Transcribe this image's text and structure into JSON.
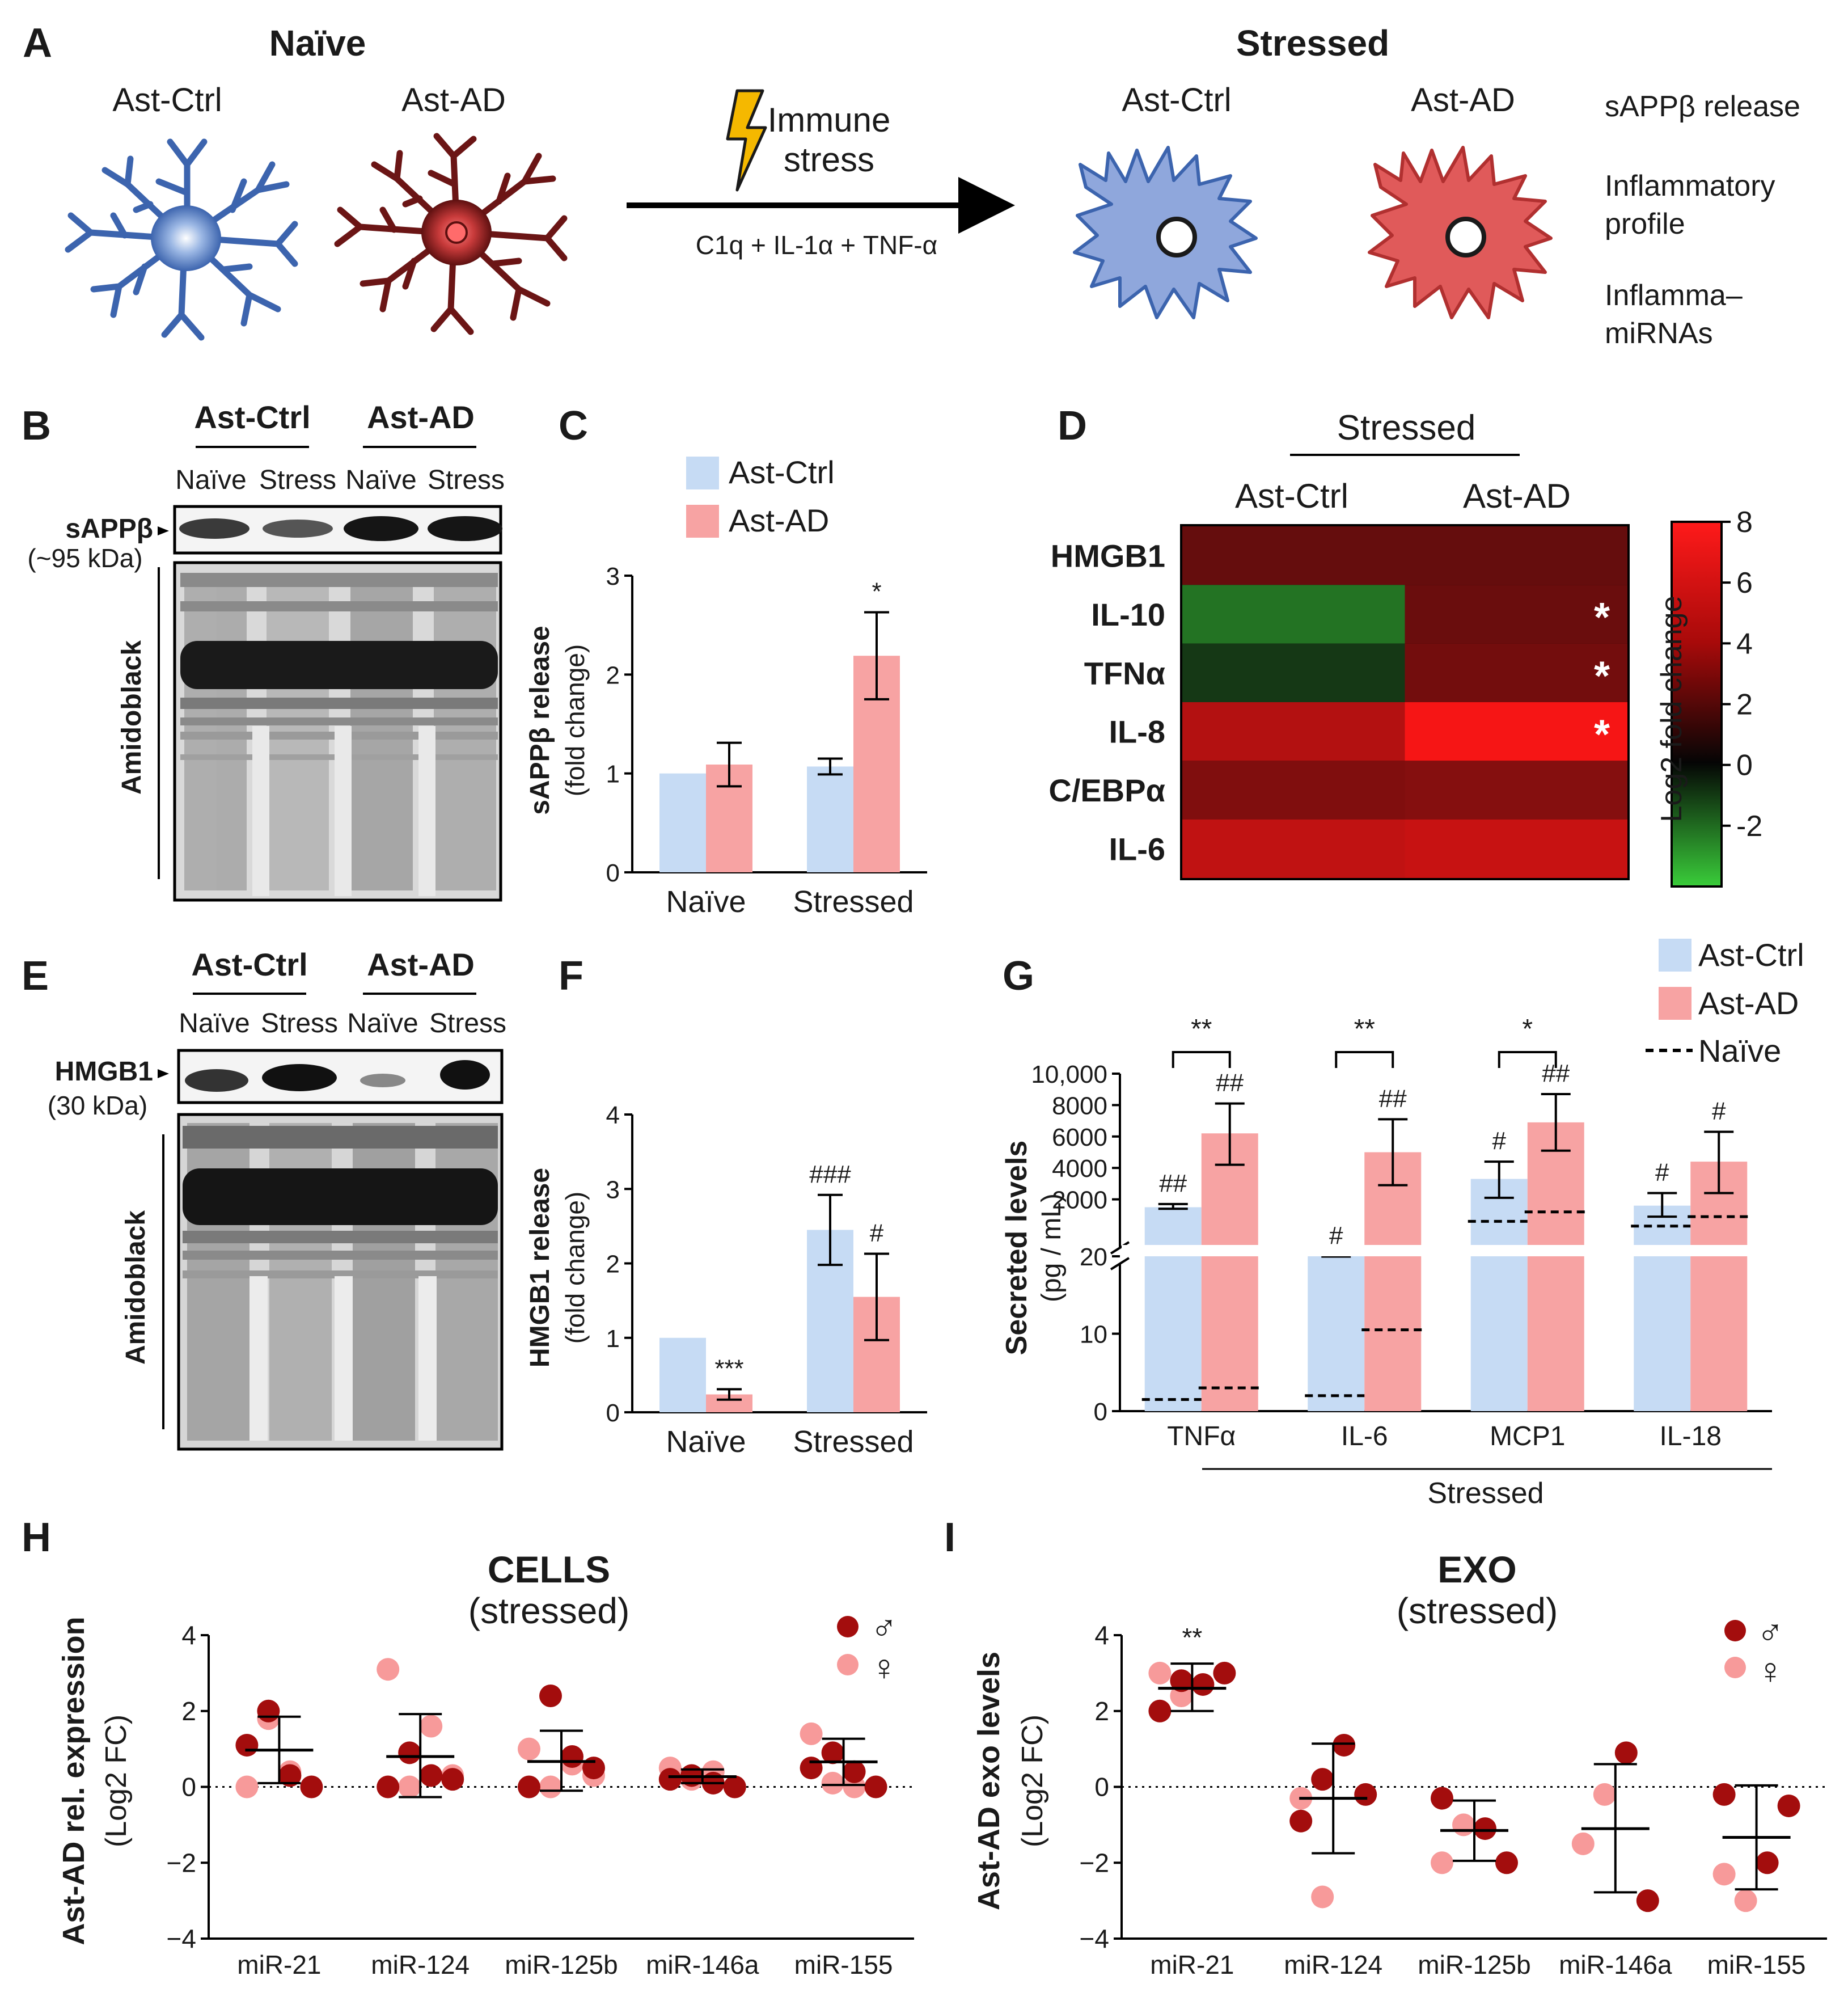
{
  "colors": {
    "ctrl": "#c6dbf4",
    "ad": "#f7a3a3",
    "male": "#a30d0d",
    "female": "#f79a9a",
    "ctrl_cell": "#3c64ae",
    "ad_cell": "#7a1818",
    "bolt": "#f5b800"
  },
  "panelA": {
    "letter": "A",
    "naive_title": "Naïve",
    "stressed_title": "Stressed",
    "ast_ctrl": "Ast-Ctrl",
    "ast_ad": "Ast-AD",
    "immune_line1": "Immune",
    "immune_line2": "stress",
    "treatment": "C1q  +  IL-1α  + TNF-α",
    "outcomes": [
      "sAPPβ release",
      "Inflammatory",
      "profile",
      "Inflamma–",
      "miRNAs"
    ]
  },
  "panelB": {
    "letter": "B",
    "groups": [
      "Ast-Ctrl",
      "Ast-AD"
    ],
    "lanes": [
      "Naïve",
      "Stress",
      "Naïve",
      "Stress"
    ],
    "band_label": "sAPPβ",
    "band_size": "(~95 kDa)",
    "stain": "Amidoblack"
  },
  "panelC": {
    "letter": "C",
    "chart_data": {
      "type": "bar",
      "categories": [
        "Naïve",
        "Stressed"
      ],
      "series": [
        {
          "name": "Ast-Ctrl",
          "values": [
            1.0,
            1.07
          ],
          "errors": [
            0,
            0.08
          ]
        },
        {
          "name": "Ast-AD",
          "values": [
            1.09,
            2.19
          ],
          "errors": [
            0.22,
            0.44
          ]
        }
      ],
      "annotations": [
        {
          "category": "Stressed",
          "series": "Ast-AD",
          "text": "*"
        }
      ],
      "ylabel_line1": "sAPPβ release",
      "ylabel_line2": "(fold change)",
      "ylim": [
        0,
        3
      ],
      "yticks": [
        "0",
        "1",
        "2",
        "3"
      ]
    }
  },
  "panelD": {
    "letter": "D",
    "chart_data": {
      "type": "heatmap",
      "title": "Stressed",
      "columns": [
        "Ast-Ctrl",
        "Ast-AD"
      ],
      "rows": [
        "HMGB1",
        "IL-10",
        "TFNα",
        "IL-8",
        "C/EBPα",
        "IL-6"
      ],
      "values": [
        [
          1.8,
          1.8
        ],
        [
          -2.0,
          2.0
        ],
        [
          -0.6,
          2.3
        ],
        [
          4.8,
          7.6
        ],
        [
          2.8,
          3.0
        ],
        [
          5.3,
          5.6
        ]
      ],
      "significant": [
        [
          false,
          false
        ],
        [
          false,
          true
        ],
        [
          false,
          true
        ],
        [
          false,
          true
        ],
        [
          false,
          false
        ],
        [
          false,
          false
        ]
      ],
      "colorbar": {
        "label": "Log2 fold change",
        "ticks": [
          "8",
          "6",
          "4",
          "2",
          "0",
          "-2"
        ],
        "range": [
          -4,
          8
        ]
      }
    }
  },
  "panelE": {
    "letter": "E",
    "groups": [
      "Ast-Ctrl",
      "Ast-AD"
    ],
    "lanes": [
      "Naïve",
      "Stress",
      "Naïve",
      "Stress"
    ],
    "band_label": "HMGB1",
    "band_size": "(30 kDa)",
    "stain": "Amidoblack"
  },
  "panelF": {
    "letter": "F",
    "chart_data": {
      "type": "bar",
      "categories": [
        "Naïve",
        "Stressed"
      ],
      "series": [
        {
          "name": "Ast-Ctrl",
          "values": [
            1.0,
            2.45
          ],
          "errors": [
            0,
            0.47
          ]
        },
        {
          "name": "Ast-AD",
          "values": [
            0.24,
            1.55
          ],
          "errors": [
            0.07,
            0.58
          ]
        }
      ],
      "annotations": [
        {
          "category": "Naïve",
          "series": "Ast-AD",
          "text": "***"
        },
        {
          "category": "Stressed",
          "series": "Ast-Ctrl",
          "text": "###"
        },
        {
          "category": "Stressed",
          "series": "Ast-AD",
          "text": "#"
        }
      ],
      "ylabel_line1": "HMGB1 release",
      "ylabel_line2": "(fold change)",
      "ylim": [
        0,
        4
      ],
      "yticks": [
        "0",
        "1",
        "2",
        "3",
        "4"
      ]
    }
  },
  "panelG": {
    "letter": "G",
    "chart_data": {
      "type": "bar",
      "categories": [
        "TNFα",
        "IL-6",
        "MCP1",
        "IL-18"
      ],
      "series": [
        {
          "name": "Ast-Ctrl",
          "values": [
            1500,
            20,
            3300,
            1600
          ],
          "err_low": [
            1400,
            20,
            2100,
            900
          ],
          "err_high": [
            1700,
            20,
            4400,
            2400
          ]
        },
        {
          "name": "Ast-AD",
          "values": [
            6200,
            5000,
            6900,
            4400
          ],
          "err_low": [
            4200,
            2900,
            5100,
            2400
          ],
          "err_high": [
            8100,
            7100,
            8700,
            6300
          ]
        }
      ],
      "naive": {
        "Ast-Ctrl": [
          1.5,
          2,
          600,
          300
        ],
        "Ast-AD": [
          3,
          10.5,
          1200,
          900
        ]
      },
      "hash_annotations": [
        [
          "##",
          "##"
        ],
        [
          "#",
          "##"
        ],
        [
          "#",
          "##"
        ],
        [
          "#",
          "#"
        ]
      ],
      "brackets": [
        "**",
        "**",
        "*",
        ""
      ],
      "legend": [
        "Ast-Ctrl",
        "Ast-AD",
        "Naïve"
      ],
      "xgroup_label": "Stressed",
      "ylabel_line1": "Secreted levels",
      "ylabel_line2": "(pg / mL)",
      "yticks_low": [
        "0",
        "10",
        "20"
      ],
      "yticks_high": [
        "2000",
        "4000",
        "6000",
        "8000",
        "10,000"
      ]
    }
  },
  "panelH": {
    "letter": "H",
    "chart_data": {
      "type": "scatter",
      "title": "CELLS",
      "subtitle": "(stressed)",
      "categories": [
        "miR-21",
        "miR-124",
        "miR-125b",
        "miR-146a",
        "miR-155"
      ],
      "male": [
        [
          0.0,
          1.1,
          2.0,
          0.3
        ],
        [
          0.0,
          0.9,
          0.3,
          0.2
        ],
        [
          0.0,
          2.4,
          0.8,
          0.5
        ],
        [
          0.2,
          0.3,
          0.1,
          0.0
        ],
        [
          0.0,
          0.5,
          0.9,
          0.4
        ]
      ],
      "female": [
        [
          0.0,
          1.8,
          0.4
        ],
        [
          3.1,
          0.0,
          1.6,
          0.3
        ],
        [
          1.0,
          0.0,
          0.6,
          0.3
        ],
        [
          0.5,
          0.2,
          0.4,
          0.0
        ],
        [
          1.4,
          0.1,
          0.0
        ]
      ],
      "mean": [
        0.97,
        0.8,
        0.67,
        0.27,
        0.66
      ],
      "sd_low": [
        0.1,
        -0.27,
        -0.1,
        0.1,
        0.05
      ],
      "sd_high": [
        1.85,
        1.92,
        1.48,
        0.46,
        1.27
      ],
      "ylabel_line1": "Ast-AD rel. expression",
      "ylabel_line2": "(Log2 FC)",
      "ylim": [
        -4,
        4
      ],
      "yticks": [
        "4",
        "2",
        "0",
        "−2",
        "−4"
      ],
      "legend": {
        "male": "♂",
        "female": "♀"
      }
    }
  },
  "panelI": {
    "letter": "I",
    "chart_data": {
      "type": "scatter",
      "title": "EXO",
      "subtitle": "(stressed)",
      "categories": [
        "miR-21",
        "miR-124",
        "miR-125b",
        "miR-146a",
        "miR-155"
      ],
      "male": [
        [
          2.7,
          3.0,
          2.0,
          2.8
        ],
        [
          1.1,
          -0.2,
          -0.9,
          0.2
        ],
        [
          -1.1,
          -2.0,
          -0.3
        ],
        [
          0.9,
          -3.0
        ],
        [
          -2.0,
          -0.5,
          -0.2
        ]
      ],
      "female": [
        [
          3.0,
          2.4
        ],
        [
          -0.3,
          -2.9
        ],
        [
          -2.0,
          -1.0
        ],
        [
          -1.5,
          -0.2
        ],
        [
          -2.3,
          -3.0
        ]
      ],
      "mean": [
        2.6,
        -0.3,
        -1.15,
        -1.1,
        -1.33
      ],
      "sd_low": [
        2.0,
        -1.75,
        -1.95,
        -2.78,
        -2.7
      ],
      "sd_high": [
        3.25,
        1.14,
        -0.36,
        0.6,
        0.04
      ],
      "stars": [
        "**",
        "",
        "",
        "",
        ""
      ],
      "ylabel_line1": "Ast-AD exo levels",
      "ylabel_line2": "(Log2 FC)",
      "ylim": [
        -4,
        4
      ],
      "yticks": [
        "4",
        "2",
        "0",
        "−2",
        "−4"
      ],
      "legend": {
        "male": "♂",
        "female": "♀"
      }
    }
  }
}
